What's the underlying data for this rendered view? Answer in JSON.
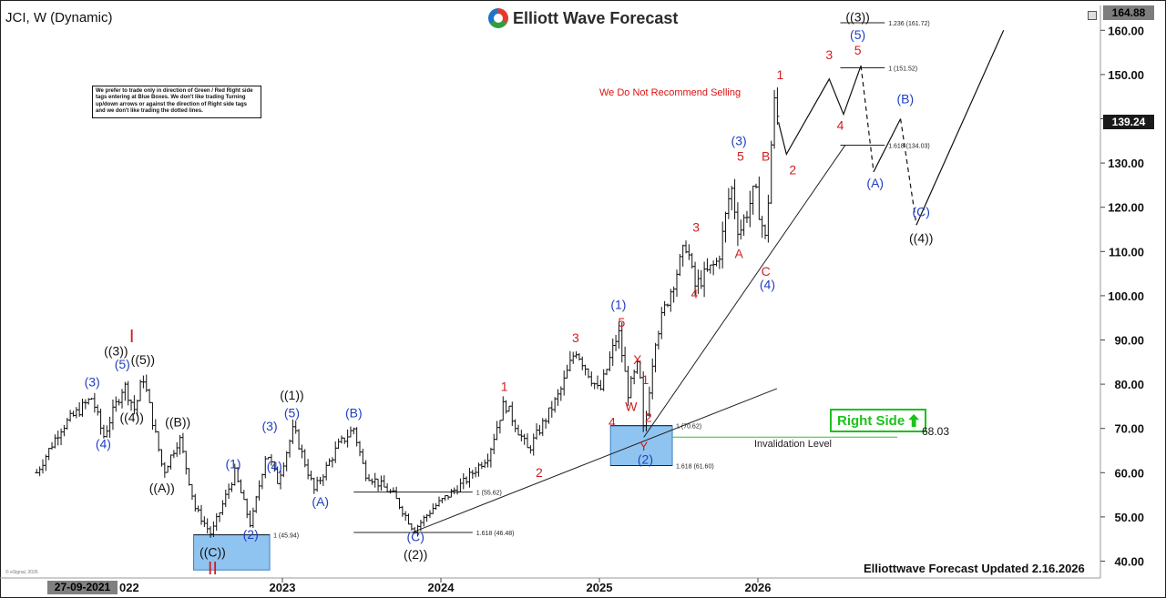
{
  "header": {
    "title": "JCI, W (Dynamic)",
    "brand": "Elliott Wave Forecast",
    "logo_icon": "ewf-logo-icon"
  },
  "disclaimer": "We prefer to trade only in direction of Green / Red Right side tags entering at Blue Boxes. We don't like trading Turning up/down arrows or against the direction of Right side tags and we don't like trading the dotted lines.",
  "note_red": "We Do Not Recommend Selling",
  "right_side": {
    "label": "Right Side",
    "icon": "arrow-up-icon",
    "color": "#1cc21c"
  },
  "invalidation": {
    "label": "Invalidation Level",
    "value": "68.03"
  },
  "footer": {
    "updated": "Elliottwave Forecast Updated 2.16.2026",
    "esignal": "© eSignal, 2026"
  },
  "price_axis": {
    "ticks": [
      40,
      50,
      60,
      70,
      80,
      90,
      100,
      110,
      120,
      130,
      140,
      150,
      160
    ],
    "top_label": "164.88",
    "current_label": "139.24"
  },
  "time_axis": {
    "cursor_label": "27-09-2021",
    "partial_label": "022",
    "labels": [
      {
        "text": "2023",
        "t": 2023.0
      },
      {
        "text": "2024",
        "t": 2024.0
      },
      {
        "text": "2025",
        "t": 2025.0
      },
      {
        "text": "2026",
        "t": 2026.0
      }
    ]
  },
  "colors": {
    "red": "#d11f1f",
    "blue": "#1f3fc2",
    "black": "#111111",
    "box": "#8fc4f0"
  },
  "chart_data": {
    "type": "ohlc",
    "title": "JCI, W (Dynamic)",
    "ylim": [
      38,
      165
    ],
    "xlim": [
      2021.45,
      2026.9
    ],
    "price_path": [
      [
        2021.45,
        60
      ],
      [
        2021.6,
        70
      ],
      [
        2021.8,
        77
      ],
      [
        2021.87,
        68
      ],
      [
        2022.0,
        80
      ],
      [
        2022.07,
        74
      ],
      [
        2022.12,
        82
      ],
      [
        2022.25,
        60
      ],
      [
        2022.35,
        68
      ],
      [
        2022.45,
        52
      ],
      [
        2022.55,
        46
      ],
      [
        2022.7,
        60
      ],
      [
        2022.8,
        48
      ],
      [
        2022.9,
        65
      ],
      [
        2022.97,
        58
      ],
      [
        2023.07,
        70
      ],
      [
        2023.2,
        56
      ],
      [
        2023.35,
        66
      ],
      [
        2023.45,
        70
      ],
      [
        2023.52,
        60
      ],
      [
        2023.7,
        55
      ],
      [
        2023.83,
        47
      ],
      [
        2023.95,
        52
      ],
      [
        2024.15,
        58
      ],
      [
        2024.3,
        64
      ],
      [
        2024.4,
        76
      ],
      [
        2024.55,
        65
      ],
      [
        2024.75,
        78
      ],
      [
        2024.85,
        88
      ],
      [
        2025.0,
        78
      ],
      [
        2025.12,
        92
      ],
      [
        2025.18,
        78
      ],
      [
        2025.25,
        85
      ],
      [
        2025.28,
        68
      ],
      [
        2025.35,
        90
      ],
      [
        2025.42,
        98
      ],
      [
        2025.55,
        112
      ],
      [
        2025.6,
        102
      ],
      [
        2025.75,
        108
      ],
      [
        2025.83,
        125
      ],
      [
        2025.88,
        114
      ],
      [
        2025.98,
        124
      ],
      [
        2026.05,
        112
      ],
      [
        2026.1,
        144
      ],
      [
        2026.13,
        139.24
      ]
    ],
    "projection": [
      {
        "path": [
          [
            2026.13,
            139.24
          ],
          [
            2026.18,
            132
          ],
          [
            2026.45,
            149
          ],
          [
            2026.54,
            141
          ],
          [
            2026.65,
            152
          ]
        ],
        "style": "solid"
      },
      {
        "path": [
          [
            2026.65,
            152
          ],
          [
            2026.73,
            128
          ]
        ],
        "style": "dashed"
      },
      {
        "path": [
          [
            2026.73,
            128
          ],
          [
            2026.9,
            140
          ]
        ],
        "style": "solid"
      },
      {
        "path": [
          [
            2026.9,
            140
          ],
          [
            2027.0,
            116
          ]
        ],
        "style": "dashed"
      },
      {
        "path": [
          [
            2027.0,
            116
          ],
          [
            2027.55,
            160
          ]
        ],
        "style": "solid"
      }
    ],
    "trendlines": [
      {
        "from": [
          2023.82,
          46.5
        ],
        "to": [
          2026.12,
          79
        ]
      },
      {
        "from": [
          2025.28,
          68
        ],
        "to": [
          2026.55,
          134
        ]
      }
    ],
    "blue_boxes": [
      {
        "t0": 2022.44,
        "t1": 2022.92,
        "p0": 38,
        "p1": 46
      },
      {
        "t0": 2025.07,
        "t1": 2025.46,
        "p0": 61.6,
        "p1": 70.6
      }
    ],
    "fib_levels": [
      {
        "label": "1.236 (161.72)",
        "price": 161.72,
        "t0": 2026.52,
        "t1": 2026.8
      },
      {
        "label": "1 (151.52)",
        "price": 151.52,
        "t0": 2026.52,
        "t1": 2026.8
      },
      {
        "label": "1.618 (134.03)",
        "price": 134.03,
        "t0": 2026.52,
        "t1": 2026.8
      },
      {
        "label": "1 (70.62)",
        "price": 70.62,
        "t0": 2025.07,
        "t1": 2025.46
      },
      {
        "label": "1.618 (61.60)",
        "price": 61.6,
        "t0": 2025.07,
        "t1": 2025.46
      },
      {
        "label": "1 (55.62)",
        "price": 55.62,
        "t0": 2023.45,
        "t1": 2024.2
      },
      {
        "label": "1.618 (46.48)",
        "price": 46.48,
        "t0": 2023.45,
        "t1": 2024.2
      },
      {
        "label": "1 (45.94)",
        "price": 45.94,
        "t0": 2022.44,
        "t1": 2022.92
      }
    ],
    "invalidation_level": {
      "price": 68.03,
      "t0": 2025.46,
      "t1": 2026.88
    },
    "wave_labels": [
      {
        "text": "I",
        "t": 2022.05,
        "p": 89.5,
        "color": "red"
      },
      {
        "text": "((3))",
        "t": 2021.95,
        "p": 86.5,
        "color": "black"
      },
      {
        "text": "(5)",
        "t": 2021.99,
        "p": 83.5,
        "color": "blue"
      },
      {
        "text": "((5))",
        "t": 2022.12,
        "p": 84.5,
        "color": "black"
      },
      {
        "text": "(3)",
        "t": 2021.8,
        "p": 79.5,
        "color": "blue"
      },
      {
        "text": "((4))",
        "t": 2022.05,
        "p": 71.5,
        "color": "black"
      },
      {
        "text": "(4)",
        "t": 2021.87,
        "p": 65.5,
        "color": "blue"
      },
      {
        "text": "((B))",
        "t": 2022.34,
        "p": 70.5,
        "color": "black"
      },
      {
        "text": "((A))",
        "t": 2022.24,
        "p": 55.5,
        "color": "black"
      },
      {
        "text": "(1)",
        "t": 2022.69,
        "p": 61.0,
        "color": "blue"
      },
      {
        "text": "(2)",
        "t": 2022.8,
        "p": 45.0,
        "color": "blue"
      },
      {
        "text": "((C))",
        "t": 2022.56,
        "p": 41.0,
        "color": "black"
      },
      {
        "text": "II",
        "t": 2022.56,
        "p": 37.0,
        "color": "red"
      },
      {
        "text": "(3)",
        "t": 2022.92,
        "p": 69.5,
        "color": "blue"
      },
      {
        "text": "((1))",
        "t": 2023.06,
        "p": 76.5,
        "color": "black"
      },
      {
        "text": "(5)",
        "t": 2023.06,
        "p": 72.5,
        "color": "blue"
      },
      {
        "text": "(4)",
        "t": 2022.95,
        "p": 60.5,
        "color": "blue"
      },
      {
        "text": "(A)",
        "t": 2023.24,
        "p": 52.5,
        "color": "blue"
      },
      {
        "text": "(B)",
        "t": 2023.45,
        "p": 72.5,
        "color": "blue"
      },
      {
        "text": "(C)",
        "t": 2023.84,
        "p": 44.5,
        "color": "blue"
      },
      {
        "text": "((2))",
        "t": 2023.84,
        "p": 40.5,
        "color": "black"
      },
      {
        "text": "1",
        "t": 2024.4,
        "p": 78.5,
        "color": "red"
      },
      {
        "text": "2",
        "t": 2024.62,
        "p": 59.0,
        "color": "red"
      },
      {
        "text": "3",
        "t": 2024.85,
        "p": 89.5,
        "color": "red"
      },
      {
        "text": "4",
        "t": 2025.08,
        "p": 70.5,
        "color": "red"
      },
      {
        "text": "(1)",
        "t": 2025.12,
        "p": 97.0,
        "color": "blue"
      },
      {
        "text": "5",
        "t": 2025.14,
        "p": 93.0,
        "color": "red"
      },
      {
        "text": "W",
        "t": 2025.2,
        "p": 74.0,
        "color": "red"
      },
      {
        "text": "X",
        "t": 2025.24,
        "p": 84.5,
        "color": "red"
      },
      {
        "text": "1",
        "t": 2025.29,
        "p": 80.0,
        "color": "red"
      },
      {
        "text": "2",
        "t": 2025.31,
        "p": 71.5,
        "color": "red"
      },
      {
        "text": "Y",
        "t": 2025.28,
        "p": 65.0,
        "color": "red"
      },
      {
        "text": "(2)",
        "t": 2025.29,
        "p": 62.0,
        "color": "blue"
      },
      {
        "text": "3",
        "t": 2025.61,
        "p": 114.5,
        "color": "red"
      },
      {
        "text": "4",
        "t": 2025.6,
        "p": 99.5,
        "color": "red"
      },
      {
        "text": "A",
        "t": 2025.88,
        "p": 108.5,
        "color": "red"
      },
      {
        "text": "(3)",
        "t": 2025.88,
        "p": 134.0,
        "color": "blue"
      },
      {
        "text": "5",
        "t": 2025.89,
        "p": 130.5,
        "color": "red"
      },
      {
        "text": "B",
        "t": 2026.05,
        "p": 130.5,
        "color": "red"
      },
      {
        "text": "C",
        "t": 2026.05,
        "p": 104.5,
        "color": "red"
      },
      {
        "text": "(4)",
        "t": 2026.06,
        "p": 101.5,
        "color": "blue"
      },
      {
        "text": "1",
        "t": 2026.14,
        "p": 149.0,
        "color": "red"
      },
      {
        "text": "2",
        "t": 2026.22,
        "p": 127.5,
        "color": "red"
      },
      {
        "text": "3",
        "t": 2026.45,
        "p": 153.5,
        "color": "red"
      },
      {
        "text": "4",
        "t": 2026.52,
        "p": 137.5,
        "color": "red"
      },
      {
        "text": "((3))",
        "t": 2026.63,
        "p": 162.0,
        "color": "black"
      },
      {
        "text": "(5)",
        "t": 2026.63,
        "p": 158.0,
        "color": "blue"
      },
      {
        "text": "5",
        "t": 2026.63,
        "p": 154.5,
        "color": "red"
      },
      {
        "text": "(A)",
        "t": 2026.74,
        "p": 124.5,
        "color": "blue"
      },
      {
        "text": "(B)",
        "t": 2026.93,
        "p": 143.5,
        "color": "blue"
      },
      {
        "text": "(C)",
        "t": 2027.03,
        "p": 118.0,
        "color": "blue"
      },
      {
        "text": "((4))",
        "t": 2027.03,
        "p": 112.0,
        "color": "black"
      }
    ]
  }
}
